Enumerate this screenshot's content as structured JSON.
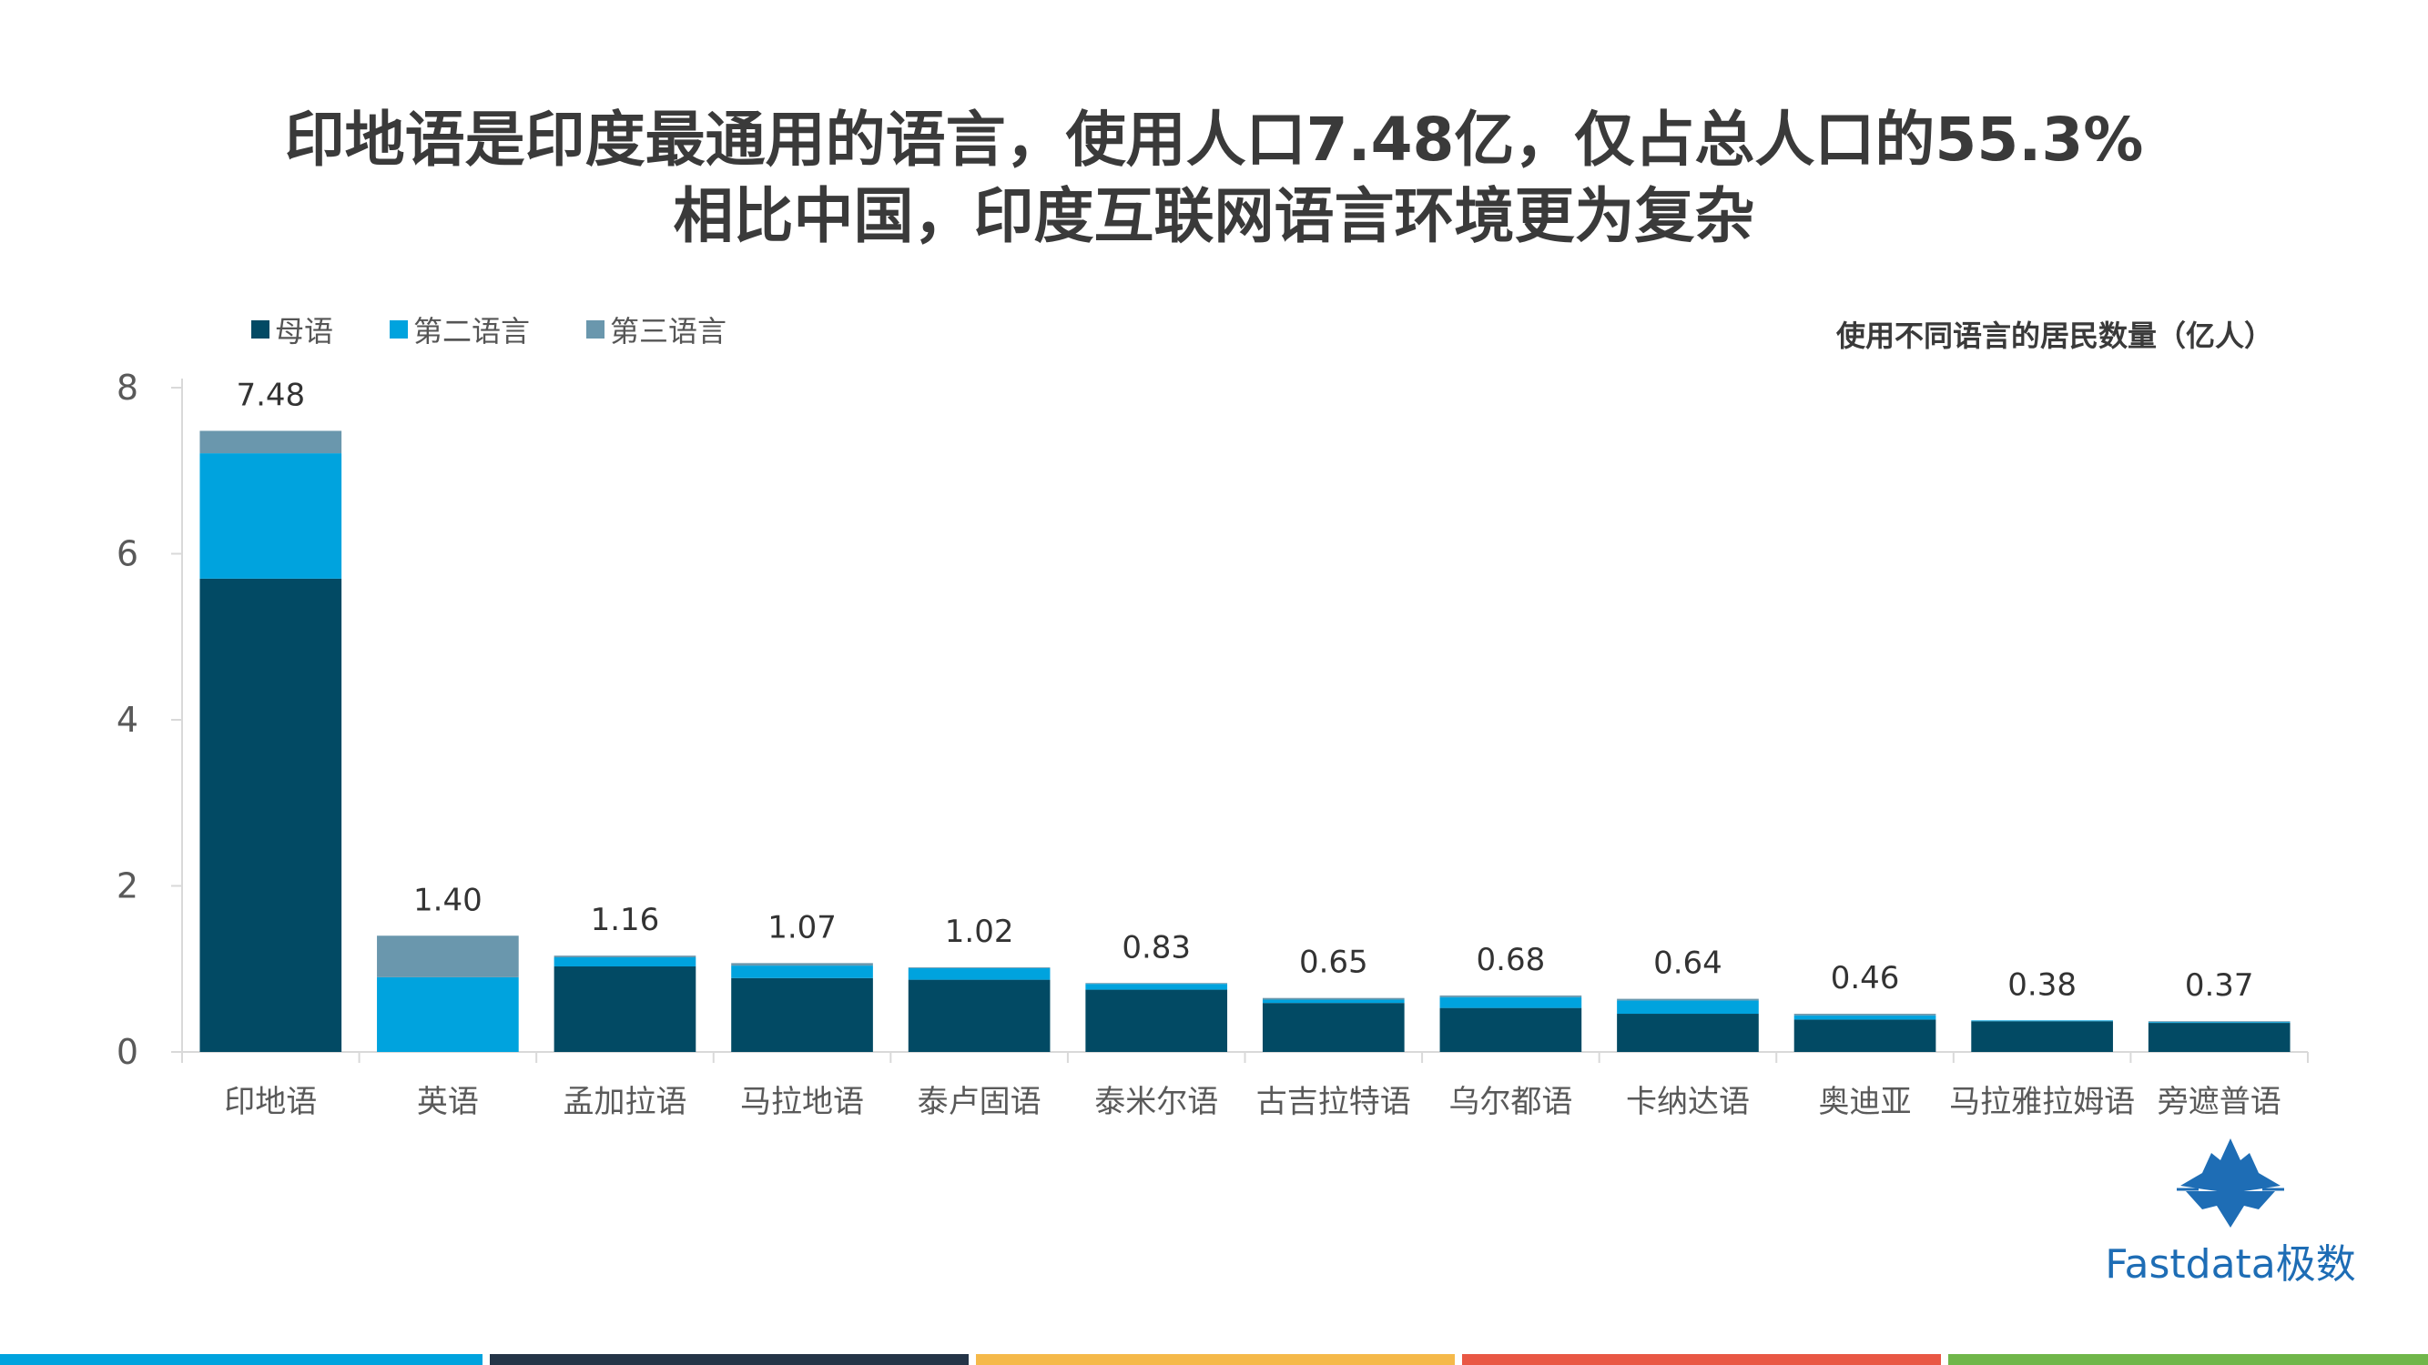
{
  "title": {
    "line1": "印地语是印度最通用的语言，使用人口7.48亿，仅占总人口的55.3%",
    "line2": "相比中国，印度互联网语言环境更为复杂"
  },
  "unit_label": "使用不同语言的居民数量（亿人）",
  "logo": {
    "text": "Fastdata极数",
    "icon": "iceberg-icon"
  },
  "colors": {
    "native": "#024a64",
    "second": "#00a3de",
    "third": "#6a97ad",
    "axis": "#d9d9d9",
    "tick_text": "#595959",
    "label_text": "#333333",
    "bottom_bars": [
      "#00a3de",
      "#243447",
      "#f5b94a",
      "#e95744",
      "#70b64a"
    ]
  },
  "chart_data": {
    "type": "bar",
    "stacked": true,
    "categories": [
      "印地语",
      "英语",
      "孟加拉语",
      "马拉地语",
      "泰卢固语",
      "泰米尔语",
      "古吉拉特语",
      "乌尔都语",
      "卡纳达语",
      "奥迪亚",
      "马拉雅拉姆语",
      "旁遮普语"
    ],
    "series": [
      {
        "name": "母语",
        "values": [
          5.7,
          0.0,
          1.03,
          0.89,
          0.87,
          0.75,
          0.59,
          0.53,
          0.46,
          0.39,
          0.37,
          0.35
        ]
      },
      {
        "name": "第二语言",
        "values": [
          1.51,
          0.9,
          0.11,
          0.15,
          0.14,
          0.07,
          0.04,
          0.13,
          0.16,
          0.05,
          0.01,
          0.01
        ]
      },
      {
        "name": "第三语言",
        "values": [
          0.27,
          0.5,
          0.02,
          0.03,
          0.01,
          0.01,
          0.02,
          0.02,
          0.02,
          0.02,
          0.0,
          0.01
        ]
      }
    ],
    "totals": [
      "7.48",
      "1.40",
      "1.16",
      "1.07",
      "1.02",
      "0.83",
      "0.65",
      "0.68",
      "0.64",
      "0.46",
      "0.38",
      "0.37"
    ],
    "yticks": [
      "0",
      "2",
      "4",
      "6",
      "8"
    ],
    "ylim": [
      0,
      8
    ],
    "grid": false,
    "legend": "top-left"
  }
}
